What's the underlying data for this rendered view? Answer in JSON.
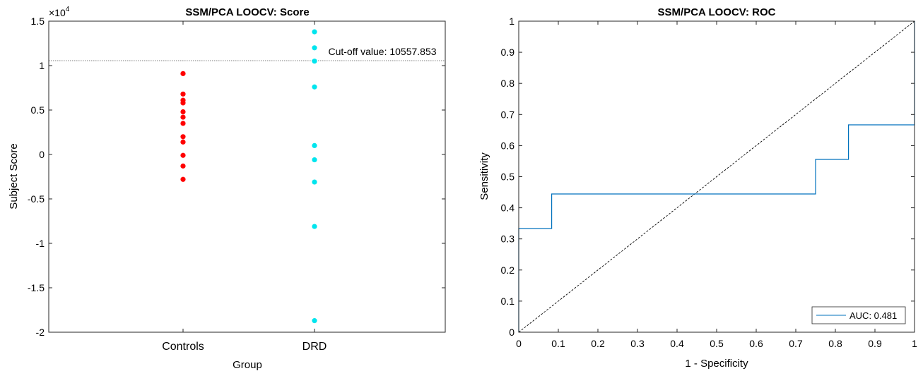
{
  "chart_data": [
    {
      "type": "scatter",
      "title": "SSM/PCA LOOCV: Score",
      "xlabel": "Group",
      "ylabel": "Subject Score",
      "exponent_label": "×10",
      "exponent_power": "4",
      "categories": [
        "Controls",
        "DRD"
      ],
      "ylim": [
        -20000,
        15000
      ],
      "yticks": [
        -20000,
        -15000,
        -10000,
        -5000,
        0,
        5000,
        10000,
        15000
      ],
      "ytick_labels": [
        "-2",
        "-1.5",
        "-1",
        "-0.5",
        "0",
        "0.5",
        "1",
        "1.5"
      ],
      "grid": false,
      "series": [
        {
          "category": "Controls",
          "color": "#ff0000",
          "values": [
            9100,
            6800,
            6100,
            5800,
            4800,
            4200,
            3500,
            2000,
            1400,
            -100,
            -1300,
            -2800
          ]
        },
        {
          "category": "DRD",
          "color": "#00e5ee",
          "values": [
            13800,
            12000,
            10500,
            7600,
            1000,
            -600,
            -3100,
            -8100,
            -18700
          ]
        }
      ],
      "cutoff": {
        "value": 10557.853,
        "label": "Cut-off value: 10557.853"
      }
    },
    {
      "type": "line",
      "title": "SSM/PCA LOOCV: ROC",
      "xlabel": "1 - Specificity",
      "ylabel": "Sensitivity",
      "xlim": [
        0,
        1
      ],
      "ylim": [
        0,
        1
      ],
      "xticks": [
        "0",
        "0.1",
        "0.2",
        "0.3",
        "0.4",
        "0.5",
        "0.6",
        "0.7",
        "0.8",
        "0.9",
        "1"
      ],
      "yticks": [
        "0",
        "0.1",
        "0.2",
        "0.3",
        "0.4",
        "0.5",
        "0.6",
        "0.7",
        "0.8",
        "0.9",
        "1"
      ],
      "grid": false,
      "roc": {
        "color": "#0072bd",
        "x": [
          0,
          0,
          0.0833,
          0.0833,
          0.75,
          0.75,
          0.8333,
          0.8333,
          1,
          1
        ],
        "y": [
          0,
          0.3333,
          0.3333,
          0.4444,
          0.4444,
          0.5556,
          0.5556,
          0.6667,
          0.6667,
          1
        ]
      },
      "diagonal": {
        "x": [
          0,
          1
        ],
        "y": [
          0,
          1
        ]
      },
      "legend": {
        "position": "bottom-right",
        "label": "AUC:  0.481"
      }
    }
  ]
}
